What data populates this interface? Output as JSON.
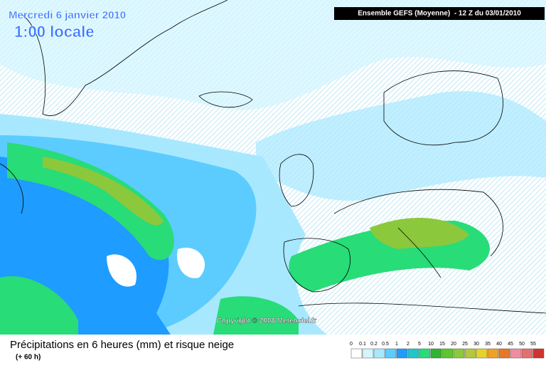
{
  "header": {
    "date": "Mercredi 6 janvier 2010",
    "time": "1:00 locale",
    "model": "Ensemble GEFS (Moyenne)  - 12 Z du 03/01/2010"
  },
  "copyright": "Copyright © 2008 Meteociel.fr",
  "footer": {
    "title": "Précipitations en 6 heures (mm) et risque neige",
    "subtitle": "(+ 60 h)"
  },
  "legend": {
    "steps": [
      {
        "label": "0",
        "color": "#ffffff"
      },
      {
        "label": "0.1",
        "color": "#d2f5ff"
      },
      {
        "label": "0.2",
        "color": "#a8e8ff"
      },
      {
        "label": "0.5",
        "color": "#5cccff"
      },
      {
        "label": "1",
        "color": "#1e9cff"
      },
      {
        "label": "2",
        "color": "#1ec8c8"
      },
      {
        "label": "5",
        "color": "#28dc78"
      },
      {
        "label": "10",
        "color": "#32b432"
      },
      {
        "label": "15",
        "color": "#5ac828"
      },
      {
        "label": "20",
        "color": "#8cc83c"
      },
      {
        "label": "25",
        "color": "#b4c83c"
      },
      {
        "label": "30",
        "color": "#e6d228"
      },
      {
        "label": "35",
        "color": "#f0a028"
      },
      {
        "label": "40",
        "color": "#e67828"
      },
      {
        "label": "45",
        "color": "#f08ca0"
      },
      {
        "label": "50",
        "color": "#e66e6e"
      },
      {
        "label": "55",
        "color": "#d23232"
      }
    ]
  }
}
